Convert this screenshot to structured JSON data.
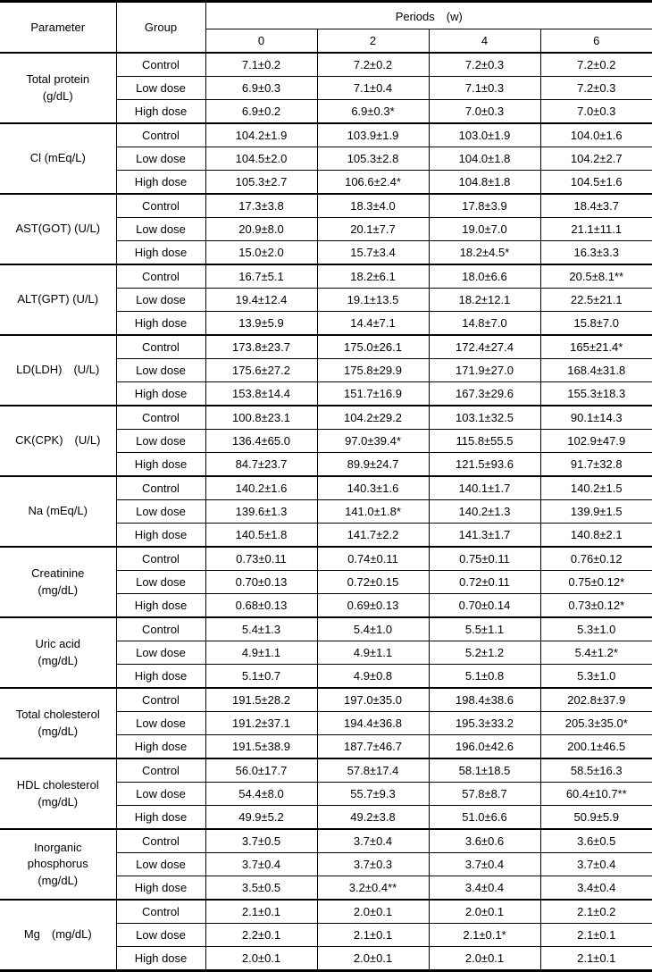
{
  "header": {
    "parameter": "Parameter",
    "group": "Group",
    "periods": "Periods　(w)",
    "cols": [
      "0",
      "2",
      "4",
      "6"
    ]
  },
  "groups": [
    "Control",
    "Low dose",
    "High dose"
  ],
  "rows": [
    {
      "param": "Total protein\n(g/dL)",
      "v": [
        [
          "7.1±0.2",
          "7.2±0.2",
          "7.2±0.3",
          "7.2±0.2"
        ],
        [
          "6.9±0.3",
          "7.1±0.4",
          "7.1±0.3",
          "7.2±0.3"
        ],
        [
          "6.9±0.2",
          "6.9±0.3*",
          "7.0±0.3",
          "7.0±0.3"
        ]
      ]
    },
    {
      "param": "Cl (mEq/L)",
      "v": [
        [
          "104.2±1.9",
          "103.9±1.9",
          "103.0±1.9",
          "104.0±1.6"
        ],
        [
          "104.5±2.0",
          "105.3±2.8",
          "104.0±1.8",
          "104.2±2.7"
        ],
        [
          "105.3±2.7",
          "106.6±2.4*",
          "104.8±1.8",
          "104.5±1.6"
        ]
      ]
    },
    {
      "param": "AST(GOT) (U/L)",
      "v": [
        [
          "17.3±3.8",
          "18.3±4.0",
          "17.8±3.9",
          "18.4±3.7"
        ],
        [
          "20.9±8.0",
          "20.1±7.7",
          "19.0±7.0",
          "21.1±11.1"
        ],
        [
          "15.0±2.0",
          "15.7±3.4",
          "18.2±4.5*",
          "16.3±3.3"
        ]
      ]
    },
    {
      "param": "ALT(GPT) (U/L)",
      "v": [
        [
          "16.7±5.1",
          "18.2±6.1",
          "18.0±6.6",
          "20.5±8.1**"
        ],
        [
          "19.4±12.4",
          "19.1±13.5",
          "18.2±12.1",
          "22.5±21.1"
        ],
        [
          "13.9±5.9",
          "14.4±7.1",
          "14.8±7.0",
          "15.8±7.0"
        ]
      ]
    },
    {
      "param": "LD(LDH)　(U/L)",
      "v": [
        [
          "173.8±23.7",
          "175.0±26.1",
          "172.4±27.4",
          "165±21.4*"
        ],
        [
          "175.6±27.2",
          "175.8±29.9",
          "171.9±27.0",
          "168.4±31.8"
        ],
        [
          "153.8±14.4",
          "151.7±16.9",
          "167.3±29.6",
          "155.3±18.3"
        ]
      ]
    },
    {
      "param": "CK(CPK)　(U/L)",
      "v": [
        [
          "100.8±23.1",
          "104.2±29.2",
          "103.1±32.5",
          "90.1±14.3"
        ],
        [
          "136.4±65.0",
          "97.0±39.4*",
          "115.8±55.5",
          "102.9±47.9"
        ],
        [
          "84.7±23.7",
          "89.9±24.7",
          "121.5±93.6",
          "91.7±32.8"
        ]
      ]
    },
    {
      "param": "Na (mEq/L)",
      "v": [
        [
          "140.2±1.6",
          "140.3±1.6",
          "140.1±1.7",
          "140.2±1.5"
        ],
        [
          "139.6±1.3",
          "141.0±1.8*",
          "140.2±1.3",
          "139.9±1.5"
        ],
        [
          "140.5±1.8",
          "141.7±2.2",
          "141.3±1.7",
          "140.8±2.1"
        ]
      ]
    },
    {
      "param": "Creatinine\n(mg/dL)",
      "v": [
        [
          "0.73±0.11",
          "0.74±0.11",
          "0.75±0.11",
          "0.76±0.12"
        ],
        [
          "0.70±0.13",
          "0.72±0.15",
          "0.72±0.11",
          "0.75±0.12*"
        ],
        [
          "0.68±0.13",
          "0.69±0.13",
          "0.70±0.14",
          "0.73±0.12*"
        ]
      ]
    },
    {
      "param": "Uric acid\n(mg/dL)",
      "v": [
        [
          "5.4±1.3",
          "5.4±1.0",
          "5.5±1.1",
          "5.3±1.0"
        ],
        [
          "4.9±1.1",
          "4.9±1.1",
          "5.2±1.2",
          "5.4±1.2*"
        ],
        [
          "5.1±0.7",
          "4.9±0.8",
          "5.1±0.8",
          "5.3±1.0"
        ]
      ]
    },
    {
      "param": "Total cholesterol\n(mg/dL)",
      "v": [
        [
          "191.5±28.2",
          "197.0±35.0",
          "198.4±38.6",
          "202.8±37.9"
        ],
        [
          "191.2±37.1",
          "194.4±36.8",
          "195.3±33.2",
          "205.3±35.0*"
        ],
        [
          "191.5±38.9",
          "187.7±46.7",
          "196.0±42.6",
          "200.1±46.5"
        ]
      ]
    },
    {
      "param": "HDL cholesterol\n(mg/dL)",
      "v": [
        [
          "56.0±17.7",
          "57.8±17.4",
          "58.1±18.5",
          "58.5±16.3"
        ],
        [
          "54.4±8.0",
          "55.7±9.3",
          "57.8±8.7",
          "60.4±10.7**"
        ],
        [
          "49.9±5.2",
          "49.2±3.8",
          "51.0±6.6",
          "50.9±5.9"
        ]
      ]
    },
    {
      "param": "Inorganic\nphosphorus\n(mg/dL)",
      "v": [
        [
          "3.7±0.5",
          "3.7±0.4",
          "3.6±0.6",
          "3.6±0.5"
        ],
        [
          "3.7±0.4",
          "3.7±0.3",
          "3.7±0.4",
          "3.7±0.4"
        ],
        [
          "3.5±0.5",
          "3.2±0.4**",
          "3.4±0.4",
          "3.4±0.4"
        ]
      ]
    },
    {
      "param": "Mg　(mg/dL)",
      "v": [
        [
          "2.1±0.1",
          "2.0±0.1",
          "2.0±0.1",
          "2.1±0.2"
        ],
        [
          "2.2±0.1",
          "2.1±0.1",
          "2.1±0.1*",
          "2.1±0.1"
        ],
        [
          "2.0±0.1",
          "2.0±0.1",
          "2.0±0.1",
          "2.1±0.1"
        ]
      ]
    }
  ]
}
